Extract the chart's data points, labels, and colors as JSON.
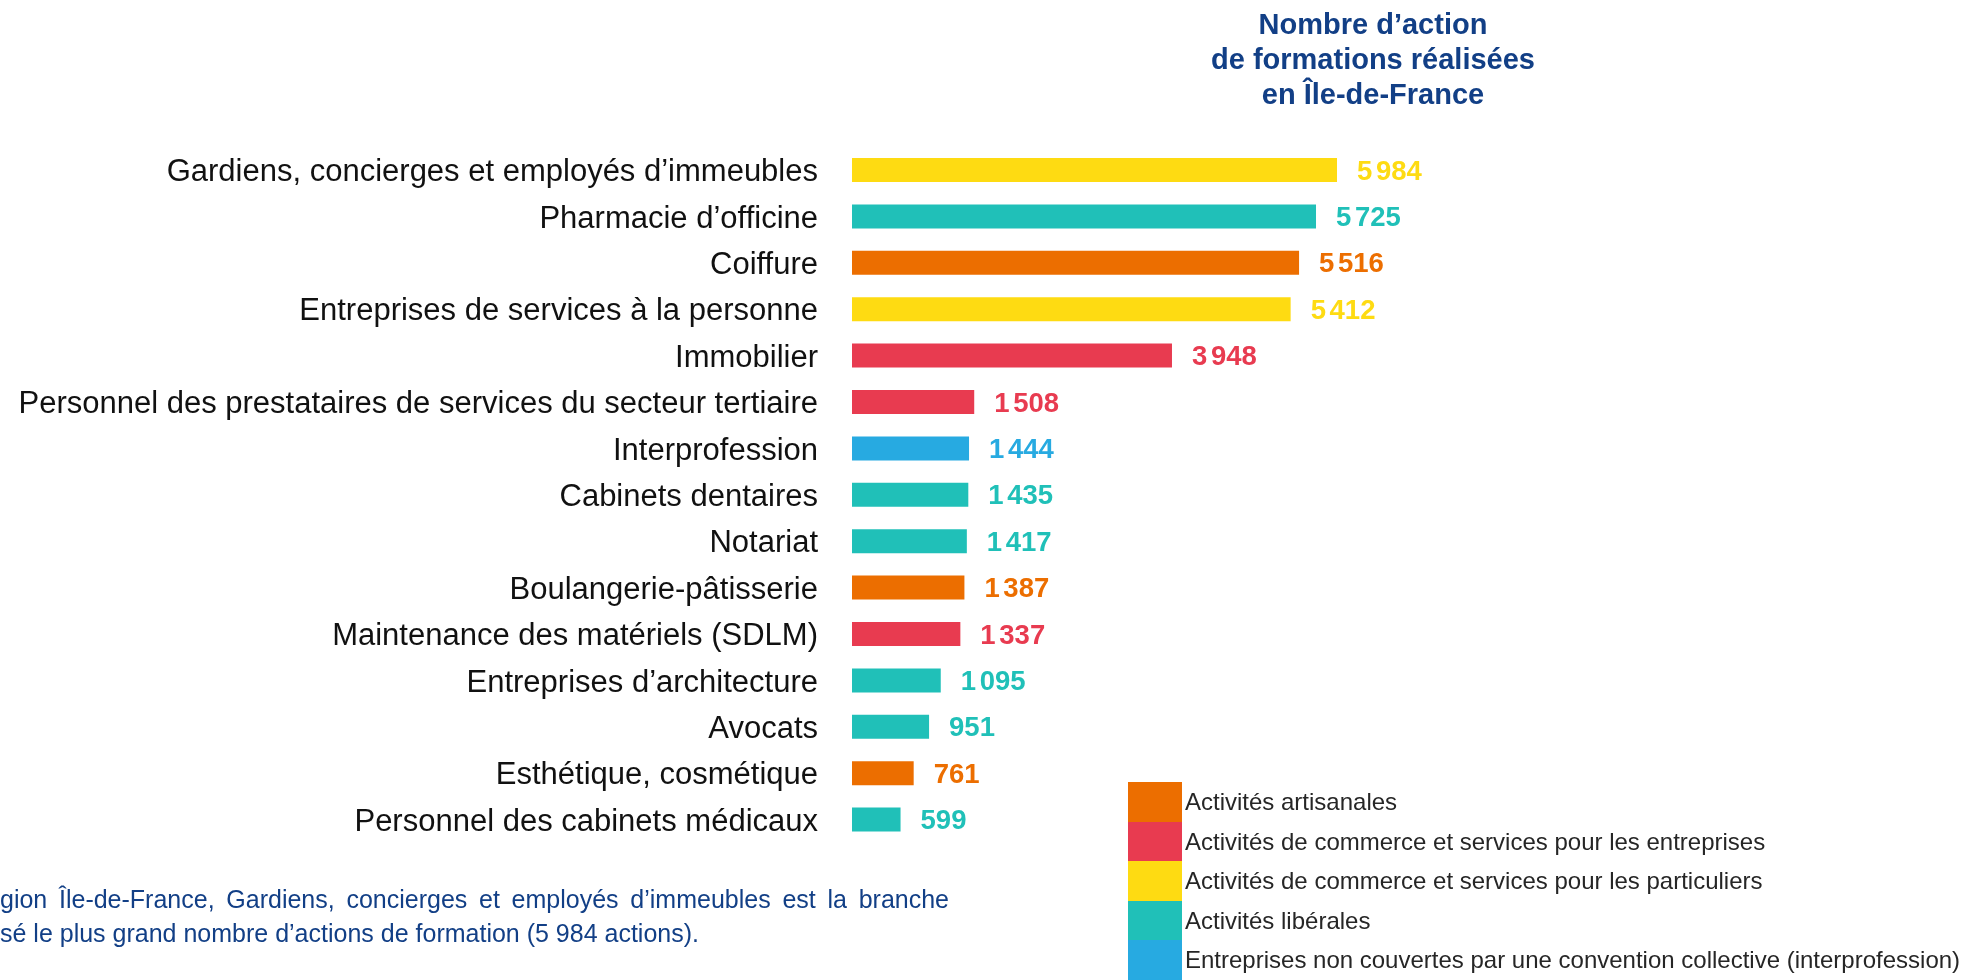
{
  "chart_data": {
    "type": "bar",
    "orientation": "horizontal",
    "stacked": true,
    "title": "Nombre d’action\nde formations réalisées\nen Île-de-France",
    "categories": [
      "Gardiens, concierges et employés d’immeubles",
      "Pharmacie d’officine",
      "Coiffure",
      "Entreprises de services à la personne",
      "Immobilier",
      "Personnel des prestataires de services du secteur tertiaire",
      "Interprofession",
      "Cabinets dentaires",
      "Notariat",
      "Boulangerie-pâtisserie",
      "Maintenance des matériels (SDLM)",
      "Entreprises d’architecture",
      "Avocats",
      "Esthétique, cosmétique",
      "Personnel des cabinets médicaux"
    ],
    "series": [
      {
        "name": "Activités artisanales",
        "color": "#ec6e00",
        "values": [
          null,
          null,
          5516,
          null,
          null,
          null,
          null,
          null,
          null,
          1387,
          null,
          null,
          null,
          761,
          null
        ],
        "value_labels": [
          null,
          null,
          "5 516",
          null,
          null,
          null,
          null,
          null,
          null,
          "1 387",
          null,
          null,
          null,
          "761",
          null
        ]
      },
      {
        "name": "Activités de commerce et services pour les entreprises",
        "color": "#e83b50",
        "values": [
          null,
          null,
          null,
          null,
          3948,
          1508,
          null,
          null,
          null,
          null,
          1337,
          null,
          null,
          null,
          null
        ],
        "value_labels": [
          null,
          null,
          null,
          null,
          "3 948",
          "1 508",
          null,
          null,
          null,
          null,
          "1 337",
          null,
          null,
          null,
          null
        ]
      },
      {
        "name": "Activités de commerce et services pour les particuliers",
        "color": "#fedb12",
        "values": [
          5984,
          null,
          null,
          5412,
          null,
          null,
          null,
          null,
          null,
          null,
          null,
          null,
          null,
          null,
          null
        ],
        "value_labels": [
          "5 984",
          null,
          null,
          "5 412",
          null,
          null,
          null,
          null,
          null,
          null,
          null,
          null,
          null,
          null,
          null
        ]
      },
      {
        "name": "Activités libérales",
        "color": "#20c0b8",
        "values": [
          null,
          5725,
          null,
          null,
          null,
          null,
          null,
          1435,
          1417,
          null,
          null,
          1095,
          951,
          null,
          599
        ],
        "value_labels": [
          null,
          "5 725",
          null,
          null,
          null,
          null,
          null,
          "1 435",
          "1 417",
          null,
          null,
          "1 095",
          "951",
          null,
          "599"
        ]
      },
      {
        "name": "Entreprises non couvertes par une convention collective (interprofession)",
        "color": "#27aae1",
        "values": [
          null,
          null,
          null,
          null,
          null,
          null,
          1444,
          null,
          null,
          null,
          null,
          null,
          null,
          null,
          null
        ],
        "value_labels": [
          null,
          null,
          null,
          null,
          null,
          null,
          "1 444",
          null,
          null,
          null,
          null,
          null,
          null,
          null,
          null
        ]
      }
    ],
    "tick_labels": "y",
    "legend": "bottom right",
    "annotations": [
      "gion Île-de-France, Gardiens, concierges et employés d’immeubles est la branche\nsé le plus grand nombre d’actions de formation (5 984 actions)."
    ]
  }
}
